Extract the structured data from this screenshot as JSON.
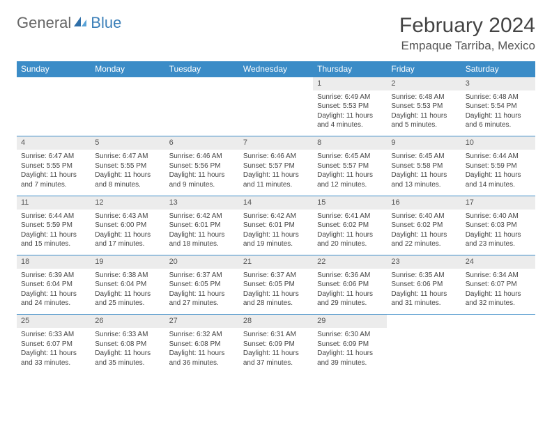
{
  "logo": {
    "general": "General",
    "blue": "Blue"
  },
  "title": "February 2024",
  "location": "Empaque Tarriba, Mexico",
  "colors": {
    "header_bg": "#3b8cc7",
    "header_text": "#ffffff",
    "daynum_bg": "#ececec",
    "border": "#3b8cc7",
    "logo_blue": "#3b7fb8"
  },
  "day_headers": [
    "Sunday",
    "Monday",
    "Tuesday",
    "Wednesday",
    "Thursday",
    "Friday",
    "Saturday"
  ],
  "weeks": [
    [
      null,
      null,
      null,
      null,
      {
        "n": "1",
        "sr": "6:49 AM",
        "ss": "5:53 PM",
        "dl": "11 hours and 4 minutes."
      },
      {
        "n": "2",
        "sr": "6:48 AM",
        "ss": "5:53 PM",
        "dl": "11 hours and 5 minutes."
      },
      {
        "n": "3",
        "sr": "6:48 AM",
        "ss": "5:54 PM",
        "dl": "11 hours and 6 minutes."
      }
    ],
    [
      {
        "n": "4",
        "sr": "6:47 AM",
        "ss": "5:55 PM",
        "dl": "11 hours and 7 minutes."
      },
      {
        "n": "5",
        "sr": "6:47 AM",
        "ss": "5:55 PM",
        "dl": "11 hours and 8 minutes."
      },
      {
        "n": "6",
        "sr": "6:46 AM",
        "ss": "5:56 PM",
        "dl": "11 hours and 9 minutes."
      },
      {
        "n": "7",
        "sr": "6:46 AM",
        "ss": "5:57 PM",
        "dl": "11 hours and 11 minutes."
      },
      {
        "n": "8",
        "sr": "6:45 AM",
        "ss": "5:57 PM",
        "dl": "11 hours and 12 minutes."
      },
      {
        "n": "9",
        "sr": "6:45 AM",
        "ss": "5:58 PM",
        "dl": "11 hours and 13 minutes."
      },
      {
        "n": "10",
        "sr": "6:44 AM",
        "ss": "5:59 PM",
        "dl": "11 hours and 14 minutes."
      }
    ],
    [
      {
        "n": "11",
        "sr": "6:44 AM",
        "ss": "5:59 PM",
        "dl": "11 hours and 15 minutes."
      },
      {
        "n": "12",
        "sr": "6:43 AM",
        "ss": "6:00 PM",
        "dl": "11 hours and 17 minutes."
      },
      {
        "n": "13",
        "sr": "6:42 AM",
        "ss": "6:01 PM",
        "dl": "11 hours and 18 minutes."
      },
      {
        "n": "14",
        "sr": "6:42 AM",
        "ss": "6:01 PM",
        "dl": "11 hours and 19 minutes."
      },
      {
        "n": "15",
        "sr": "6:41 AM",
        "ss": "6:02 PM",
        "dl": "11 hours and 20 minutes."
      },
      {
        "n": "16",
        "sr": "6:40 AM",
        "ss": "6:02 PM",
        "dl": "11 hours and 22 minutes."
      },
      {
        "n": "17",
        "sr": "6:40 AM",
        "ss": "6:03 PM",
        "dl": "11 hours and 23 minutes."
      }
    ],
    [
      {
        "n": "18",
        "sr": "6:39 AM",
        "ss": "6:04 PM",
        "dl": "11 hours and 24 minutes."
      },
      {
        "n": "19",
        "sr": "6:38 AM",
        "ss": "6:04 PM",
        "dl": "11 hours and 25 minutes."
      },
      {
        "n": "20",
        "sr": "6:37 AM",
        "ss": "6:05 PM",
        "dl": "11 hours and 27 minutes."
      },
      {
        "n": "21",
        "sr": "6:37 AM",
        "ss": "6:05 PM",
        "dl": "11 hours and 28 minutes."
      },
      {
        "n": "22",
        "sr": "6:36 AM",
        "ss": "6:06 PM",
        "dl": "11 hours and 29 minutes."
      },
      {
        "n": "23",
        "sr": "6:35 AM",
        "ss": "6:06 PM",
        "dl": "11 hours and 31 minutes."
      },
      {
        "n": "24",
        "sr": "6:34 AM",
        "ss": "6:07 PM",
        "dl": "11 hours and 32 minutes."
      }
    ],
    [
      {
        "n": "25",
        "sr": "6:33 AM",
        "ss": "6:07 PM",
        "dl": "11 hours and 33 minutes."
      },
      {
        "n": "26",
        "sr": "6:33 AM",
        "ss": "6:08 PM",
        "dl": "11 hours and 35 minutes."
      },
      {
        "n": "27",
        "sr": "6:32 AM",
        "ss": "6:08 PM",
        "dl": "11 hours and 36 minutes."
      },
      {
        "n": "28",
        "sr": "6:31 AM",
        "ss": "6:09 PM",
        "dl": "11 hours and 37 minutes."
      },
      {
        "n": "29",
        "sr": "6:30 AM",
        "ss": "6:09 PM",
        "dl": "11 hours and 39 minutes."
      },
      null,
      null
    ]
  ],
  "labels": {
    "sunrise": "Sunrise:",
    "sunset": "Sunset:",
    "daylight": "Daylight:"
  }
}
